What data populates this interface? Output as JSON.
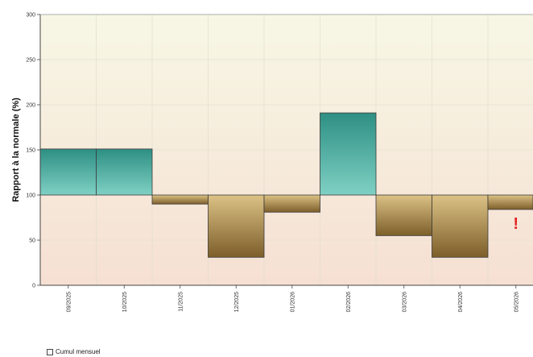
{
  "chart_data": {
    "type": "bar",
    "ylabel": "Rapport à la normale (%)",
    "ylim": [
      0,
      300
    ],
    "yticks": [
      0,
      50,
      100,
      150,
      200,
      250,
      300
    ],
    "baseline": 100,
    "categories": [
      "09/2025",
      "10/2025",
      "11/2025",
      "12/2025",
      "01/2026",
      "02/2026",
      "03/2026",
      "04/2026",
      "05/2026"
    ],
    "series": [
      {
        "name": "Cumul mensuel",
        "values": [
          151,
          151,
          90,
          31,
          81,
          191,
          55,
          31,
          84
        ]
      }
    ],
    "warning_marker": {
      "category": "05/2026",
      "symbol": "!",
      "color": "#e32222"
    },
    "colors": {
      "above_top": "#2e8f83",
      "above_bottom": "#7fd0c4",
      "below_top": "#dcc286",
      "below_bottom": "#7d5e2a",
      "bg_top": "#f7f7e5",
      "bg_bottom": "#f6e0d3"
    },
    "grid": true,
    "legend": {
      "position": "bottom-left",
      "label": "Cumul mensuel"
    }
  }
}
